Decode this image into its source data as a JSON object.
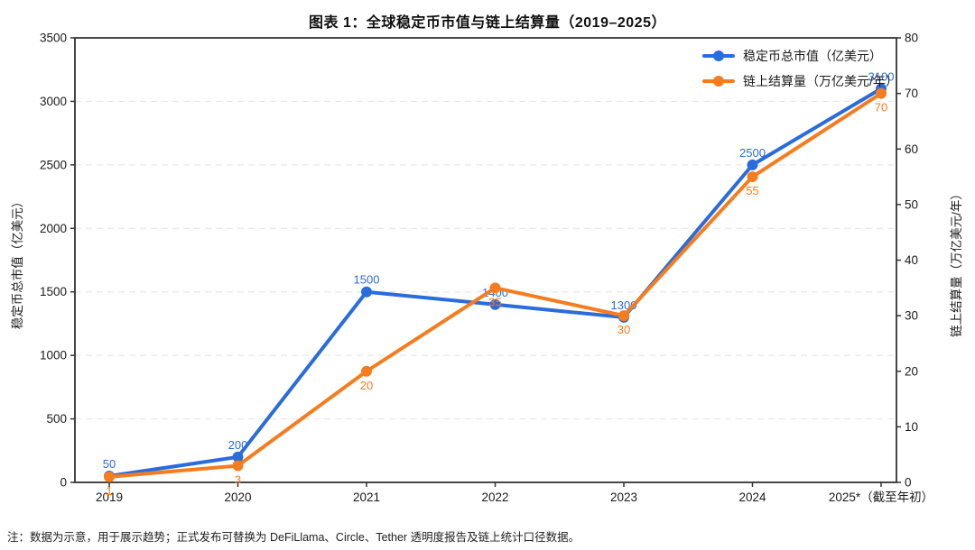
{
  "title": "图表 1：全球稳定币市值与链上结算量（2019–2025）",
  "footnote": "注：数据为示意，用于展示趋势；正式发布可替换为 DeFiLlama、Circle、Tether 透明度报告及链上统计口径数据。",
  "colors": {
    "market_cap_blue": "#2a6cdb",
    "settlement_orange": "#f57c1f",
    "grid": "#e8e8e8",
    "spine": "#333333",
    "tick_text": "#1a1a1a"
  },
  "chart_data": {
    "type": "line",
    "title": "图表 1：全球稳定币市值与链上结算量（2019–2025）",
    "categories": [
      "2019",
      "2020",
      "2021",
      "2022",
      "2023",
      "2024",
      "2025*（截至年初）"
    ],
    "series": [
      {
        "name": "稳定币总市值（亿美元）",
        "axis": "left",
        "color": "#2a6cdb",
        "values": [
          50,
          200,
          1500,
          1400,
          1300,
          2500,
          3100
        ],
        "value_labels": "above"
      },
      {
        "name": "链上结算量（万亿美元/年）",
        "axis": "right",
        "color": "#f57c1f",
        "values": [
          1,
          3,
          20,
          35,
          30,
          55,
          70
        ],
        "value_labels": "below"
      }
    ],
    "left_axis": {
      "label": "稳定币总市值（亿美元）",
      "min": 0,
      "max": 3500,
      "step": 500
    },
    "right_axis": {
      "label": "链上结算量（万亿美元/年）",
      "min": 0,
      "max": 80,
      "step": 10
    },
    "grid": "horizontal-dashed",
    "legend_position": "top-right-inside"
  }
}
